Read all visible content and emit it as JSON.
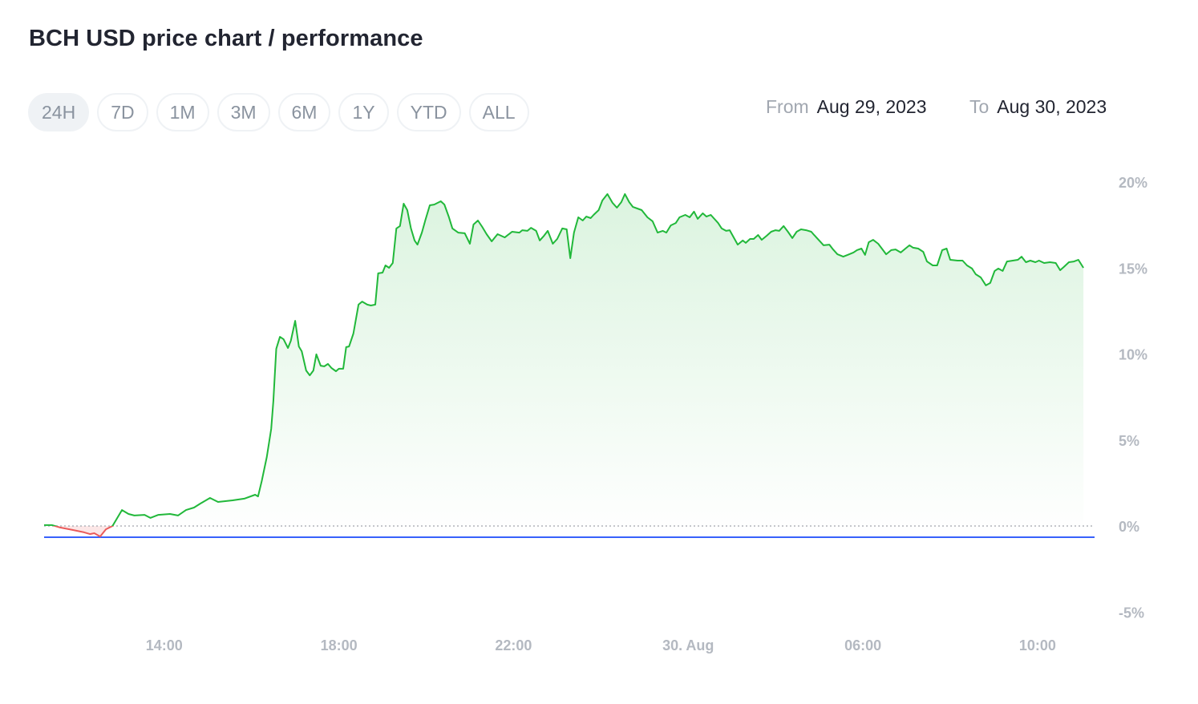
{
  "title": "BCH USD price chart / performance",
  "ranges": [
    {
      "label": "24H",
      "active": true
    },
    {
      "label": "7D"
    },
    {
      "label": "1M"
    },
    {
      "label": "3M"
    },
    {
      "label": "6M"
    },
    {
      "label": "1Y"
    },
    {
      "label": "YTD"
    },
    {
      "label": "ALL"
    }
  ],
  "date_range": {
    "from_label": "From",
    "from": "Aug 29, 2023",
    "to_label": "To",
    "to": "Aug 30, 2023"
  },
  "colors": {
    "up": "#16c784",
    "line_up": "#21b83a",
    "line_down": "#ea5b5b",
    "reference": "#3861fb",
    "zero": "#b0b4ba",
    "axis_text": "#b4b9c1"
  },
  "chart_data": {
    "type": "area",
    "title": "",
    "xlabel": "",
    "ylabel": "",
    "start_date": "2023-08-29",
    "ylim": [
      -5,
      20
    ],
    "y_ticks": [
      {
        "v": 20,
        "label": "20%"
      },
      {
        "v": 15,
        "label": "15%"
      },
      {
        "v": 10,
        "label": "10%"
      },
      {
        "v": 5,
        "label": "5%"
      },
      {
        "v": 0,
        "label": "0%"
      },
      {
        "v": -5,
        "label": "-5%"
      }
    ],
    "x_ticks": [
      {
        "time": "08-29 14:00",
        "label": "14:00"
      },
      {
        "time": "08-29 18:00",
        "label": "18:00"
      },
      {
        "time": "08-29 22:00",
        "label": "22:00"
      },
      {
        "time": "08-30 02:00",
        "label": "30. Aug"
      },
      {
        "time": "08-30 06:00",
        "label": "06:00"
      },
      {
        "time": "08-30 10:00",
        "label": "10:00"
      }
    ],
    "xlim": [
      "08-29 11:15",
      "08-30 11:15"
    ],
    "reference_line": -0.65,
    "baseline": 0,
    "grid": false,
    "series": [
      {
        "points": [
          [
            "08-29 11:15",
            0.05
          ],
          [
            "08-29 11:26",
            0.05
          ],
          [
            "08-29 11:37",
            -0.09
          ],
          [
            "08-29 11:54",
            -0.23
          ],
          [
            "08-29 12:10",
            -0.37
          ],
          [
            "08-29 12:18",
            -0.47
          ],
          [
            "08-29 12:24",
            -0.42
          ],
          [
            "08-29 12:32",
            -0.61
          ],
          [
            "08-29 12:40",
            -0.19
          ],
          [
            "08-29 12:49",
            0
          ],
          [
            "08-29 13:02",
            0.93
          ],
          [
            "08-29 13:11",
            0.7
          ],
          [
            "08-29 13:19",
            0.61
          ],
          [
            "08-29 13:33",
            0.65
          ],
          [
            "08-29 13:41",
            0.47
          ],
          [
            "08-29 13:52",
            0.65
          ],
          [
            "08-29 14:08",
            0.7
          ],
          [
            "08-29 14:19",
            0.61
          ],
          [
            "08-29 14:30",
            0.93
          ],
          [
            "08-29 14:41",
            1.07
          ],
          [
            "08-29 14:50",
            1.31
          ],
          [
            "08-29 15:03",
            1.63
          ],
          [
            "08-29 15:14",
            1.4
          ],
          [
            "08-29 15:34",
            1.49
          ],
          [
            "08-29 15:50",
            1.59
          ],
          [
            "08-29 16:05",
            1.82
          ],
          [
            "08-29 16:09",
            1.72
          ],
          [
            "08-29 16:14",
            2.61
          ],
          [
            "08-29 16:21",
            4.01
          ],
          [
            "08-29 16:27",
            5.64
          ],
          [
            "08-29 16:30",
            7.27
          ],
          [
            "08-29 16:34",
            10.3
          ],
          [
            "08-29 16:39",
            11.0
          ],
          [
            "08-29 16:44",
            10.86
          ],
          [
            "08-29 16:50",
            10.35
          ],
          [
            "08-29 16:54",
            10.77
          ],
          [
            "08-29 17:00",
            11.93
          ],
          [
            "08-29 17:05",
            10.44
          ],
          [
            "08-29 17:09",
            10.16
          ],
          [
            "08-29 17:15",
            9.04
          ],
          [
            "08-29 17:20",
            8.76
          ],
          [
            "08-29 17:25",
            9.04
          ],
          [
            "08-29 17:29",
            9.98
          ],
          [
            "08-29 17:35",
            9.32
          ],
          [
            "08-29 17:40",
            9.28
          ],
          [
            "08-29 17:45",
            9.42
          ],
          [
            "08-29 17:50",
            9.18
          ],
          [
            "08-29 17:56",
            9.0
          ],
          [
            "08-29 18:00",
            9.14
          ],
          [
            "08-29 18:06",
            9.14
          ],
          [
            "08-29 18:10",
            10.4
          ],
          [
            "08-29 18:14",
            10.44
          ],
          [
            "08-29 18:20",
            11.19
          ],
          [
            "08-29 18:27",
            12.87
          ],
          [
            "08-29 18:32",
            13.05
          ],
          [
            "08-29 18:39",
            12.87
          ],
          [
            "08-29 18:44",
            12.82
          ],
          [
            "08-29 18:50",
            12.87
          ],
          [
            "08-29 18:54",
            14.69
          ],
          [
            "08-29 19:00",
            14.73
          ],
          [
            "08-29 19:04",
            15.15
          ],
          [
            "08-29 19:09",
            15.01
          ],
          [
            "08-29 19:14",
            15.29
          ],
          [
            "08-29 19:19",
            17.3
          ],
          [
            "08-29 19:24",
            17.44
          ],
          [
            "08-29 19:29",
            18.74
          ],
          [
            "08-29 19:34",
            18.37
          ],
          [
            "08-29 19:39",
            17.3
          ],
          [
            "08-29 19:44",
            16.6
          ],
          [
            "08-29 19:48",
            16.36
          ],
          [
            "08-29 19:54",
            17.06
          ],
          [
            "08-29 19:59",
            17.81
          ],
          [
            "08-29 20:05",
            18.65
          ],
          [
            "08-29 20:11",
            18.69
          ],
          [
            "08-29 20:20",
            18.88
          ],
          [
            "08-29 20:25",
            18.69
          ],
          [
            "08-29 20:31",
            17.99
          ],
          [
            "08-29 20:36",
            17.3
          ],
          [
            "08-29 20:44",
            17.06
          ],
          [
            "08-29 20:53",
            17.02
          ],
          [
            "08-29 21:00",
            16.41
          ],
          [
            "08-29 21:05",
            17.53
          ],
          [
            "08-29 21:11",
            17.76
          ],
          [
            "08-29 21:17",
            17.39
          ],
          [
            "08-29 21:23",
            16.97
          ],
          [
            "08-29 21:30",
            16.55
          ],
          [
            "08-29 21:38",
            16.97
          ],
          [
            "08-29 21:48",
            16.78
          ],
          [
            "08-29 21:58",
            17.11
          ],
          [
            "08-29 22:08",
            17.06
          ],
          [
            "08-29 22:12",
            17.2
          ],
          [
            "08-29 22:19",
            17.16
          ],
          [
            "08-29 22:24",
            17.34
          ],
          [
            "08-29 22:31",
            17.16
          ],
          [
            "08-29 22:36",
            16.6
          ],
          [
            "08-29 22:42",
            16.88
          ],
          [
            "08-29 22:47",
            17.16
          ],
          [
            "08-29 22:54",
            16.41
          ],
          [
            "08-29 23:00",
            16.69
          ],
          [
            "08-29 23:07",
            17.3
          ],
          [
            "08-29 23:13",
            17.25
          ],
          [
            "08-29 23:18",
            15.57
          ],
          [
            "08-29 23:23",
            17.06
          ],
          [
            "08-29 23:29",
            17.95
          ],
          [
            "08-29 23:35",
            17.76
          ],
          [
            "08-29 23:40",
            17.99
          ],
          [
            "08-29 23:46",
            17.9
          ],
          [
            "08-29 23:50",
            18.09
          ],
          [
            "08-29 23:57",
            18.37
          ],
          [
            "08-30 00:02",
            18.93
          ],
          [
            "08-30 00:09",
            19.3
          ],
          [
            "08-30 00:16",
            18.79
          ],
          [
            "08-30 00:22",
            18.51
          ],
          [
            "08-30 00:28",
            18.83
          ],
          [
            "08-30 00:33",
            19.3
          ],
          [
            "08-30 00:39",
            18.83
          ],
          [
            "08-30 00:44",
            18.55
          ],
          [
            "08-30 00:50",
            18.46
          ],
          [
            "08-30 00:56",
            18.37
          ],
          [
            "08-30 01:04",
            17.95
          ],
          [
            "08-30 01:11",
            17.72
          ],
          [
            "08-30 01:18",
            17.06
          ],
          [
            "08-30 01:25",
            17.16
          ],
          [
            "08-30 01:30",
            17.06
          ],
          [
            "08-30 01:36",
            17.48
          ],
          [
            "08-30 01:43",
            17.62
          ],
          [
            "08-30 01:48",
            17.95
          ],
          [
            "08-30 01:56",
            18.09
          ],
          [
            "08-30 02:02",
            17.95
          ],
          [
            "08-30 02:08",
            18.28
          ],
          [
            "08-30 02:13",
            17.86
          ],
          [
            "08-30 02:20",
            18.18
          ],
          [
            "08-30 02:25",
            17.99
          ],
          [
            "08-30 02:31",
            18.09
          ],
          [
            "08-30 02:35",
            17.9
          ],
          [
            "08-30 02:41",
            17.62
          ],
          [
            "08-30 02:46",
            17.3
          ],
          [
            "08-30 02:52",
            17.16
          ],
          [
            "08-30 02:57",
            17.2
          ],
          [
            "08-30 03:03",
            16.74
          ],
          [
            "08-30 03:08",
            16.36
          ],
          [
            "08-30 03:15",
            16.6
          ],
          [
            "08-30 03:19",
            16.46
          ],
          [
            "08-30 03:25",
            16.69
          ],
          [
            "08-30 03:30",
            16.69
          ],
          [
            "08-30 03:36",
            16.92
          ],
          [
            "08-30 03:41",
            16.64
          ],
          [
            "08-30 03:48",
            16.88
          ],
          [
            "08-30 03:54",
            17.11
          ],
          [
            "08-30 04:00",
            17.2
          ],
          [
            "08-30 04:05",
            17.16
          ],
          [
            "08-30 04:11",
            17.44
          ],
          [
            "08-30 04:17",
            17.11
          ],
          [
            "08-30 04:23",
            16.74
          ],
          [
            "08-30 04:29",
            17.11
          ],
          [
            "08-30 04:35",
            17.25
          ],
          [
            "08-30 04:42",
            17.2
          ],
          [
            "08-30 04:49",
            17.11
          ],
          [
            "08-30 04:53",
            16.92
          ],
          [
            "08-30 05:00",
            16.6
          ],
          [
            "08-30 05:06",
            16.32
          ],
          [
            "08-30 05:14",
            16.36
          ],
          [
            "08-30 05:19",
            16.08
          ],
          [
            "08-30 05:25",
            15.8
          ],
          [
            "08-30 05:33",
            15.66
          ],
          [
            "08-30 05:39",
            15.76
          ],
          [
            "08-30 05:47",
            15.9
          ],
          [
            "08-30 05:52",
            16.04
          ],
          [
            "08-30 05:58",
            16.13
          ],
          [
            "08-30 06:03",
            15.76
          ],
          [
            "08-30 06:08",
            16.5
          ],
          [
            "08-30 06:14",
            16.64
          ],
          [
            "08-30 06:21",
            16.41
          ],
          [
            "08-30 06:27",
            16.08
          ],
          [
            "08-30 06:32",
            15.8
          ],
          [
            "08-30 06:39",
            16.04
          ],
          [
            "08-30 06:45",
            16.08
          ],
          [
            "08-30 06:52",
            15.9
          ],
          [
            "08-30 06:57",
            16.08
          ],
          [
            "08-30 07:04",
            16.32
          ],
          [
            "08-30 07:09",
            16.18
          ],
          [
            "08-30 07:16",
            16.13
          ],
          [
            "08-30 07:23",
            15.94
          ],
          [
            "08-30 07:28",
            15.38
          ],
          [
            "08-30 07:36",
            15.15
          ],
          [
            "08-30 07:42",
            15.15
          ],
          [
            "08-30 07:49",
            16.04
          ],
          [
            "08-30 07:55",
            16.13
          ],
          [
            "08-30 08:00",
            15.48
          ],
          [
            "08-30 08:10",
            15.43
          ],
          [
            "08-30 08:17",
            15.43
          ],
          [
            "08-30 08:23",
            15.15
          ],
          [
            "08-30 08:30",
            14.97
          ],
          [
            "08-30 08:35",
            14.64
          ],
          [
            "08-30 08:42",
            14.45
          ],
          [
            "08-30 08:49",
            13.99
          ],
          [
            "08-30 08:55",
            14.13
          ],
          [
            "08-30 09:01",
            14.83
          ],
          [
            "08-30 09:06",
            14.97
          ],
          [
            "08-30 09:12",
            14.83
          ],
          [
            "08-30 09:18",
            15.38
          ],
          [
            "08-30 09:26",
            15.43
          ],
          [
            "08-30 09:33",
            15.48
          ],
          [
            "08-30 09:38",
            15.66
          ],
          [
            "08-30 09:44",
            15.34
          ],
          [
            "08-30 09:50",
            15.43
          ],
          [
            "08-30 09:57",
            15.34
          ],
          [
            "08-30 10:02",
            15.43
          ],
          [
            "08-30 10:09",
            15.29
          ],
          [
            "08-30 10:17",
            15.34
          ],
          [
            "08-30 10:25",
            15.29
          ],
          [
            "08-30 10:31",
            14.87
          ],
          [
            "08-30 10:36",
            15.06
          ],
          [
            "08-30 10:43",
            15.34
          ],
          [
            "08-30 10:50",
            15.38
          ],
          [
            "08-30 10:56",
            15.48
          ],
          [
            "08-30 11:03",
            15.01
          ]
        ]
      }
    ]
  }
}
